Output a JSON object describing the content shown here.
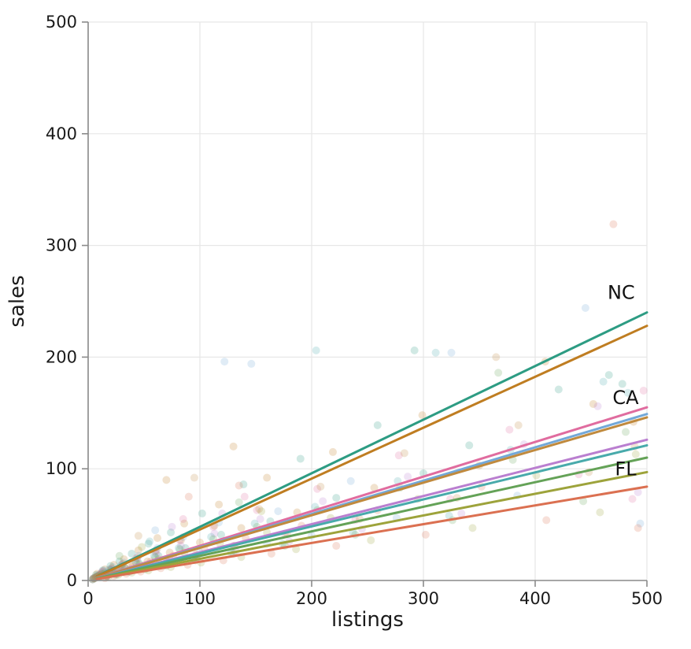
{
  "chart_data": {
    "type": "scatter",
    "title": "",
    "xlabel": "listings",
    "ylabel": "sales",
    "xlim": [
      0,
      500
    ],
    "ylim": [
      0,
      500
    ],
    "xticks": [
      0,
      100,
      200,
      300,
      400,
      500
    ],
    "yticks": [
      0,
      100,
      200,
      300,
      400,
      500
    ],
    "grid": true,
    "legend": "none",
    "point_radius": 5,
    "point_opacity": 0.22,
    "line_width": 3,
    "colors": {
      "grid": "#e7e7e7",
      "spine": "#8a8a8a",
      "tick": "#8a8a8a",
      "text": "#1a1a1a"
    },
    "series": [
      {
        "name": "NC",
        "color": "#2d9c83",
        "trend_x0": 8,
        "trend_y_at_500": 240,
        "points": [
          [
            4,
            1
          ],
          [
            7,
            5
          ],
          [
            10,
            3
          ],
          [
            13,
            9
          ],
          [
            16,
            6
          ],
          [
            20,
            13
          ],
          [
            24,
            8
          ],
          [
            28,
            17
          ],
          [
            33,
            11
          ],
          [
            39,
            24
          ],
          [
            46,
            15
          ],
          [
            54,
            33
          ],
          [
            63,
            22
          ],
          [
            74,
            43
          ],
          [
            87,
            29
          ],
          [
            102,
            60
          ],
          [
            119,
            41
          ],
          [
            139,
            86
          ],
          [
            163,
            53
          ],
          [
            190,
            109
          ],
          [
            222,
            74
          ],
          [
            259,
            139
          ],
          [
            292,
            206
          ],
          [
            341,
            121
          ],
          [
            421,
            171
          ],
          [
            466,
            184
          ],
          [
            478,
            176
          ],
          [
            300,
            96
          ]
        ]
      },
      {
        "name": "",
        "color": "#bf7d21",
        "trend_x0": 8,
        "trend_y_at_500": 228,
        "points": [
          [
            5,
            2
          ],
          [
            8,
            6
          ],
          [
            11,
            4
          ],
          [
            15,
            10
          ],
          [
            19,
            7
          ],
          [
            23,
            14
          ],
          [
            27,
            9
          ],
          [
            32,
            19
          ],
          [
            38,
            12
          ],
          [
            45,
            27
          ],
          [
            53,
            17
          ],
          [
            62,
            38
          ],
          [
            73,
            25
          ],
          [
            86,
            51
          ],
          [
            100,
            34
          ],
          [
            117,
            68
          ],
          [
            137,
            47
          ],
          [
            160,
            92
          ],
          [
            187,
            61
          ],
          [
            219,
            115
          ],
          [
            256,
            83
          ],
          [
            299,
            148
          ],
          [
            350,
            103
          ],
          [
            409,
            196
          ],
          [
            452,
            158
          ],
          [
            488,
            142
          ],
          [
            70,
            90
          ],
          [
            130,
            120
          ]
        ]
      },
      {
        "name": "CA",
        "color": "#e06c9f",
        "trend_x0": 8,
        "trend_y_at_500": 155,
        "points": [
          [
            6,
            2
          ],
          [
            9,
            4
          ],
          [
            12,
            7
          ],
          [
            16,
            3
          ],
          [
            20,
            10
          ],
          [
            25,
            6
          ],
          [
            30,
            14
          ],
          [
            36,
            9
          ],
          [
            43,
            20
          ],
          [
            51,
            12
          ],
          [
            60,
            26
          ],
          [
            70,
            17
          ],
          [
            82,
            36
          ],
          [
            96,
            23
          ],
          [
            112,
            48
          ],
          [
            130,
            31
          ],
          [
            151,
            63
          ],
          [
            176,
            42
          ],
          [
            205,
            82
          ],
          [
            239,
            54
          ],
          [
            278,
            112
          ],
          [
            324,
            73
          ],
          [
            377,
            135
          ],
          [
            439,
            95
          ],
          [
            487,
            73
          ],
          [
            497,
            170
          ],
          [
            140,
            75
          ],
          [
            85,
            55
          ]
        ]
      },
      {
        "name": "",
        "color": "#73a8d8",
        "trend_x0": 8,
        "trend_y_at_500": 149,
        "points": [
          [
            5,
            2
          ],
          [
            8,
            4
          ],
          [
            11,
            6
          ],
          [
            14,
            9
          ],
          [
            18,
            5
          ],
          [
            22,
            12
          ],
          [
            27,
            8
          ],
          [
            32,
            16
          ],
          [
            38,
            10
          ],
          [
            45,
            22
          ],
          [
            53,
            14
          ],
          [
            62,
            29
          ],
          [
            73,
            19
          ],
          [
            85,
            39
          ],
          [
            100,
            25
          ],
          [
            117,
            52
          ],
          [
            122,
            196
          ],
          [
            146,
            194
          ],
          [
            170,
            62
          ],
          [
            200,
            40
          ],
          [
            235,
            89
          ],
          [
            276,
            56
          ],
          [
            325,
            204
          ],
          [
            384,
            76
          ],
          [
            445,
            244
          ],
          [
            494,
            51
          ],
          [
            160,
            33
          ],
          [
            60,
            45
          ]
        ]
      },
      {
        "name": "",
        "color": "#c08a3e",
        "trend_x0": 8,
        "trend_y_at_500": 146,
        "points": [
          [
            7,
            3
          ],
          [
            10,
            5
          ],
          [
            13,
            8
          ],
          [
            17,
            4
          ],
          [
            21,
            11
          ],
          [
            26,
            7
          ],
          [
            31,
            15
          ],
          [
            37,
            9
          ],
          [
            44,
            20
          ],
          [
            52,
            13
          ],
          [
            61,
            27
          ],
          [
            71,
            17
          ],
          [
            83,
            36
          ],
          [
            97,
            23
          ],
          [
            113,
            49
          ],
          [
            131,
            31
          ],
          [
            153,
            64
          ],
          [
            178,
            42
          ],
          [
            208,
            84
          ],
          [
            243,
            55
          ],
          [
            283,
            114
          ],
          [
            330,
            74
          ],
          [
            385,
            139
          ],
          [
            448,
            97
          ],
          [
            489,
            120
          ],
          [
            365,
            200
          ],
          [
            95,
            92
          ],
          [
            45,
            40
          ]
        ]
      },
      {
        "name": "",
        "color": "#ba7fd0",
        "trend_x0": 8,
        "trend_y_at_500": 126,
        "points": [
          [
            4,
            1
          ],
          [
            7,
            3
          ],
          [
            10,
            5
          ],
          [
            13,
            8
          ],
          [
            17,
            4
          ],
          [
            21,
            10
          ],
          [
            26,
            6
          ],
          [
            31,
            13
          ],
          [
            37,
            8
          ],
          [
            44,
            18
          ],
          [
            52,
            11
          ],
          [
            61,
            24
          ],
          [
            71,
            15
          ],
          [
            83,
            31
          ],
          [
            97,
            20
          ],
          [
            113,
            42
          ],
          [
            132,
            26
          ],
          [
            154,
            55
          ],
          [
            180,
            35
          ],
          [
            210,
            71
          ],
          [
            245,
            46
          ],
          [
            286,
            93
          ],
          [
            334,
            60
          ],
          [
            390,
            122
          ],
          [
            456,
            156
          ],
          [
            492,
            79
          ],
          [
            120,
            60
          ],
          [
            75,
            48
          ]
        ]
      },
      {
        "name": "",
        "color": "#48aaab",
        "trend_x0": 8,
        "trend_y_at_500": 121,
        "points": [
          [
            5,
            2
          ],
          [
            8,
            4
          ],
          [
            11,
            3
          ],
          [
            15,
            7
          ],
          [
            19,
            10
          ],
          [
            24,
            6
          ],
          [
            29,
            13
          ],
          [
            35,
            8
          ],
          [
            42,
            17
          ],
          [
            50,
            11
          ],
          [
            59,
            22
          ],
          [
            69,
            14
          ],
          [
            81,
            29
          ],
          [
            94,
            19
          ],
          [
            110,
            39
          ],
          [
            128,
            25
          ],
          [
            149,
            51
          ],
          [
            174,
            33
          ],
          [
            203,
            66
          ],
          [
            237,
            43
          ],
          [
            277,
            89
          ],
          [
            311,
            204
          ],
          [
            323,
            58
          ],
          [
            378,
            117
          ],
          [
            461,
            178
          ],
          [
            483,
            168
          ],
          [
            204,
            206
          ],
          [
            55,
            35
          ]
        ]
      },
      {
        "name": "",
        "color": "#64a257",
        "trend_x0": 8,
        "trend_y_at_500": 110,
        "points": [
          [
            6,
            2
          ],
          [
            9,
            4
          ],
          [
            12,
            6
          ],
          [
            16,
            3
          ],
          [
            20,
            9
          ],
          [
            25,
            5
          ],
          [
            30,
            12
          ],
          [
            36,
            8
          ],
          [
            43,
            16
          ],
          [
            51,
            10
          ],
          [
            60,
            21
          ],
          [
            70,
            13
          ],
          [
            82,
            28
          ],
          [
            96,
            18
          ],
          [
            112,
            37
          ],
          [
            130,
            24
          ],
          [
            151,
            48
          ],
          [
            176,
            31
          ],
          [
            205,
            63
          ],
          [
            239,
            41
          ],
          [
            279,
            83
          ],
          [
            326,
            54
          ],
          [
            380,
            108
          ],
          [
            443,
            71
          ],
          [
            481,
            133
          ],
          [
            367,
            186
          ],
          [
            135,
            70
          ],
          [
            28,
            22
          ]
        ]
      },
      {
        "name": "FL",
        "color": "#9da33b",
        "trend_x0": 8,
        "trend_y_at_500": 97,
        "points": [
          [
            4,
            1
          ],
          [
            7,
            3
          ],
          [
            10,
            4
          ],
          [
            14,
            6
          ],
          [
            18,
            3
          ],
          [
            22,
            8
          ],
          [
            27,
            5
          ],
          [
            33,
            11
          ],
          [
            39,
            7
          ],
          [
            46,
            14
          ],
          [
            54,
            9
          ],
          [
            63,
            19
          ],
          [
            74,
            12
          ],
          [
            86,
            25
          ],
          [
            101,
            16
          ],
          [
            118,
            33
          ],
          [
            137,
            21
          ],
          [
            160,
            43
          ],
          [
            186,
            28
          ],
          [
            217,
            56
          ],
          [
            253,
            36
          ],
          [
            295,
            73
          ],
          [
            344,
            47
          ],
          [
            401,
            94
          ],
          [
            458,
            61
          ],
          [
            490,
            113
          ],
          [
            155,
            62
          ],
          [
            48,
            30
          ]
        ]
      },
      {
        "name": "",
        "color": "#db7051",
        "trend_x0": 8,
        "trend_y_at_500": 84,
        "points": [
          [
            5,
            2
          ],
          [
            8,
            3
          ],
          [
            11,
            5
          ],
          [
            15,
            2
          ],
          [
            19,
            7
          ],
          [
            23,
            4
          ],
          [
            28,
            10
          ],
          [
            34,
            6
          ],
          [
            40,
            13
          ],
          [
            47,
            8
          ],
          [
            56,
            17
          ],
          [
            65,
            11
          ],
          [
            76,
            22
          ],
          [
            89,
            14
          ],
          [
            104,
            29
          ],
          [
            121,
            18
          ],
          [
            141,
            38
          ],
          [
            164,
            24
          ],
          [
            191,
            49
          ],
          [
            222,
            31
          ],
          [
            259,
            63
          ],
          [
            302,
            41
          ],
          [
            352,
            84
          ],
          [
            410,
            54
          ],
          [
            470,
            319
          ],
          [
            492,
            47
          ],
          [
            135,
            85
          ],
          [
            90,
            75
          ]
        ]
      }
    ],
    "annotations": [
      {
        "text": "NC",
        "x": 477,
        "y": 252
      },
      {
        "text": "CA",
        "x": 481,
        "y": 158
      },
      {
        "text": "FL",
        "x": 481,
        "y": 94
      }
    ]
  }
}
